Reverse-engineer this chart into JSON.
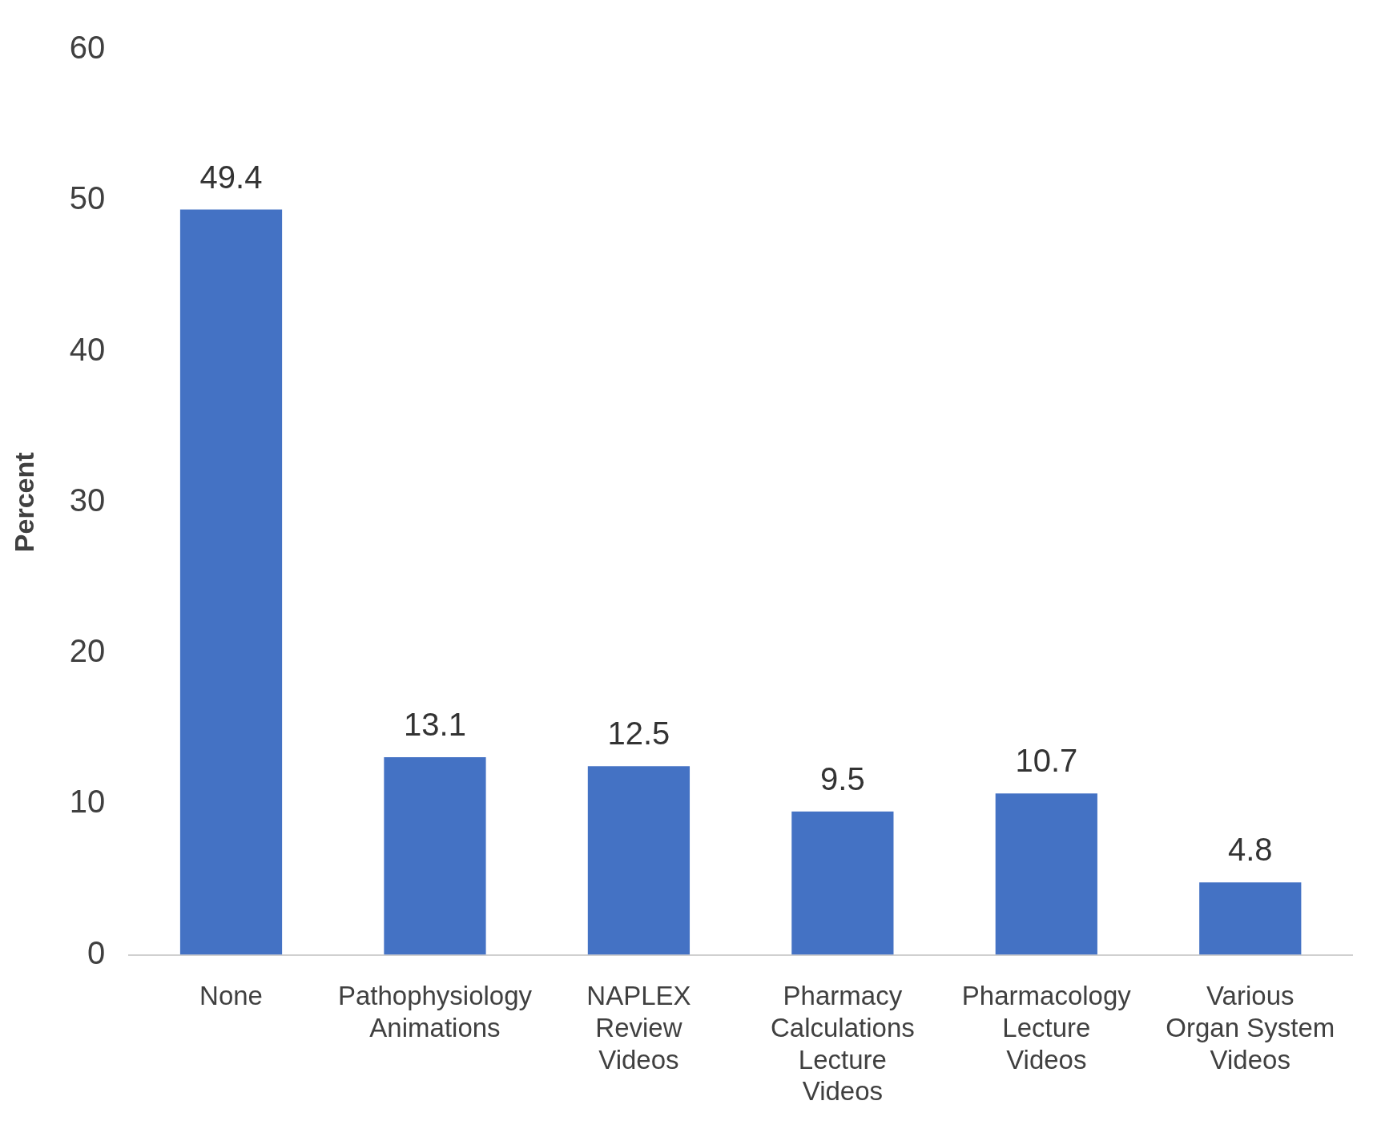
{
  "chart_data": {
    "type": "bar",
    "ylabel": "Percent",
    "categories": [
      "None",
      "Pathophysiology Animations",
      "NAPLEX Review Videos",
      "Pharmacy Calculations Lecture Videos",
      "Pharmacology Lecture Videos",
      "Various Organ System Videos"
    ],
    "values": [
      49.4,
      13.1,
      12.5,
      9.5,
      10.7,
      4.8
    ],
    "color": "#4472c4",
    "ylim": [
      0,
      60
    ],
    "yticks": [
      0,
      10,
      20,
      30,
      40,
      50,
      60
    ],
    "grid": false,
    "legend": false,
    "data_labels": true
  }
}
